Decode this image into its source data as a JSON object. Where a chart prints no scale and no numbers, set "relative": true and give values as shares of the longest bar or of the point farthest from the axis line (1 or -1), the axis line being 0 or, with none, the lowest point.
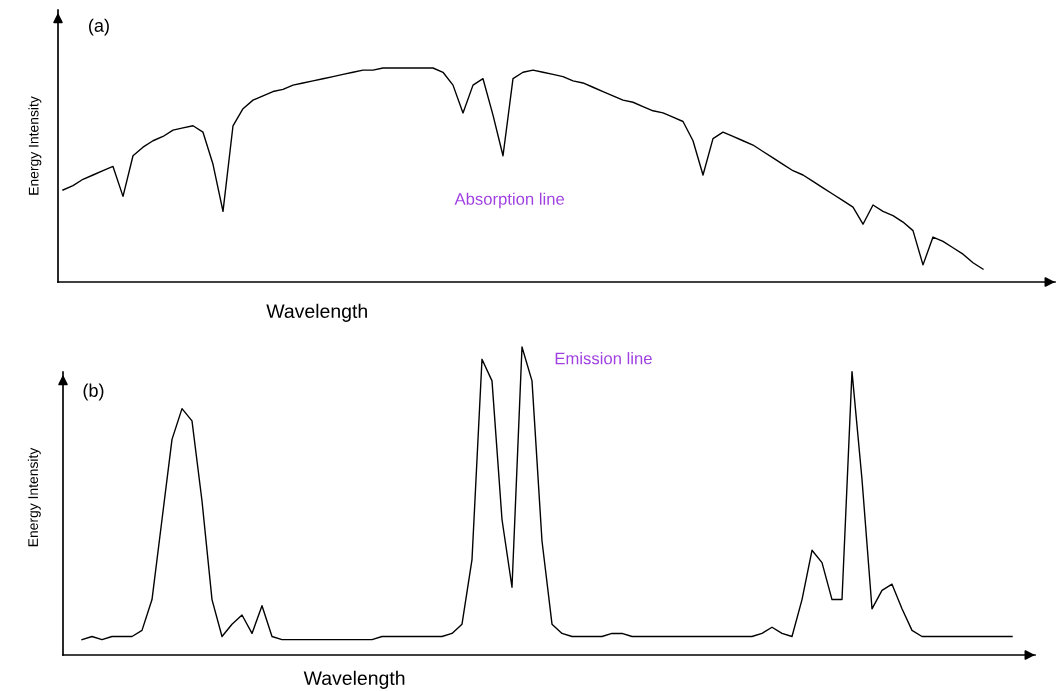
{
  "chart_data": [
    {
      "type": "line",
      "title": "(a)",
      "xlabel": "Wavelength",
      "ylabel": "Energy Intensity",
      "relative": true,
      "annotations": [
        "Absorption line"
      ],
      "categories": [
        null,
        null,
        null,
        null,
        null,
        null,
        null,
        null,
        null,
        null,
        null,
        null,
        null,
        null,
        null,
        null,
        null,
        null,
        null,
        null,
        null,
        null,
        null,
        null,
        null,
        null,
        null,
        null,
        null,
        null,
        null,
        null,
        null,
        null,
        null,
        null,
        null,
        null,
        null,
        null,
        null,
        null,
        null,
        null,
        null,
        null,
        null,
        null,
        null,
        null,
        null,
        null,
        null,
        null,
        null,
        null,
        null,
        null,
        null,
        null,
        null,
        null,
        null,
        null,
        null,
        null,
        null,
        null,
        null,
        null,
        null,
        null,
        null,
        null,
        null,
        null,
        null,
        null,
        null,
        null,
        null,
        null,
        null,
        null,
        null,
        null,
        null,
        null,
        null,
        null,
        null,
        null,
        null
      ],
      "series": [
        {
          "color": "#000000",
          "values": [
            0.43,
            0.45,
            0.48,
            0.5,
            0.52,
            0.54,
            0.4,
            0.59,
            0.63,
            0.66,
            0.68,
            0.71,
            0.72,
            0.73,
            0.7,
            0.55,
            0.33,
            0.73,
            0.81,
            0.85,
            0.87,
            0.89,
            0.9,
            0.92,
            0.93,
            0.94,
            0.95,
            0.96,
            0.97,
            0.98,
            0.99,
            0.99,
            1,
            1,
            1,
            1,
            1,
            1,
            0.98,
            0.92,
            0.79,
            0.92,
            0.95,
            0.78,
            0.59,
            0.95,
            0.98,
            0.99,
            0.98,
            0.97,
            0.96,
            0.94,
            0.93,
            0.91,
            0.89,
            0.87,
            0.85,
            0.84,
            0.82,
            0.8,
            0.79,
            0.77,
            0.75,
            0.66,
            0.5,
            0.67,
            0.7,
            0.68,
            0.66,
            0.64,
            0.61,
            0.58,
            0.55,
            0.52,
            0.5,
            0.47,
            0.44,
            0.41,
            0.38,
            0.35,
            0.27,
            0.36,
            0.33,
            0.31,
            0.28,
            0.24,
            0.08,
            0.21,
            0.19,
            0.16,
            0.13,
            0.09,
            0.06
          ]
        }
      ]
    },
    {
      "type": "line",
      "title": "(b)",
      "xlabel": "Wavelength",
      "ylabel": "Energy Intensity",
      "relative": true,
      "annotations": [
        "Emission line"
      ],
      "categories": [
        null,
        null,
        null,
        null,
        null,
        null,
        null,
        null,
        null,
        null,
        null,
        null,
        null,
        null,
        null,
        null,
        null,
        null,
        null,
        null,
        null,
        null,
        null,
        null,
        null,
        null,
        null,
        null,
        null,
        null,
        null,
        null,
        null,
        null,
        null,
        null,
        null,
        null,
        null,
        null,
        null,
        null,
        null,
        null,
        null,
        null,
        null,
        null,
        null,
        null,
        null,
        null,
        null,
        null,
        null,
        null,
        null,
        null,
        null,
        null,
        null,
        null,
        null,
        null,
        null,
        null,
        null,
        null,
        null,
        null,
        null,
        null,
        null,
        null,
        null,
        null,
        null,
        null,
        null,
        null,
        null,
        null,
        null,
        null,
        null,
        null,
        null,
        null,
        null,
        null,
        null,
        null,
        null,
        null
      ],
      "series": [
        {
          "color": "#000000",
          "values": [
            0.05,
            0.06,
            0.05,
            0.06,
            0.06,
            0.06,
            0.08,
            0.18,
            0.44,
            0.7,
            0.8,
            0.76,
            0.5,
            0.18,
            0.06,
            0.1,
            0.13,
            0.07,
            0.16,
            0.06,
            0.05,
            0.05,
            0.05,
            0.05,
            0.05,
            0.05,
            0.05,
            0.05,
            0.05,
            0.05,
            0.06,
            0.06,
            0.06,
            0.06,
            0.06,
            0.06,
            0.06,
            0.07,
            0.1,
            0.31,
            0.96,
            0.89,
            0.44,
            0.22,
            1,
            0.89,
            0.37,
            0.1,
            0.07,
            0.06,
            0.06,
            0.06,
            0.06,
            0.07,
            0.07,
            0.06,
            0.06,
            0.06,
            0.06,
            0.06,
            0.06,
            0.06,
            0.06,
            0.06,
            0.06,
            0.06,
            0.06,
            0.06,
            0.07,
            0.09,
            0.07,
            0.06,
            0.18,
            0.34,
            0.3,
            0.18,
            0.18,
            0.92,
            0.57,
            0.15,
            0.21,
            0.23,
            0.15,
            0.08,
            0.06,
            0.06,
            0.06,
            0.06,
            0.06,
            0.06,
            0.06,
            0.06,
            0.06,
            0.06
          ]
        }
      ]
    }
  ]
}
